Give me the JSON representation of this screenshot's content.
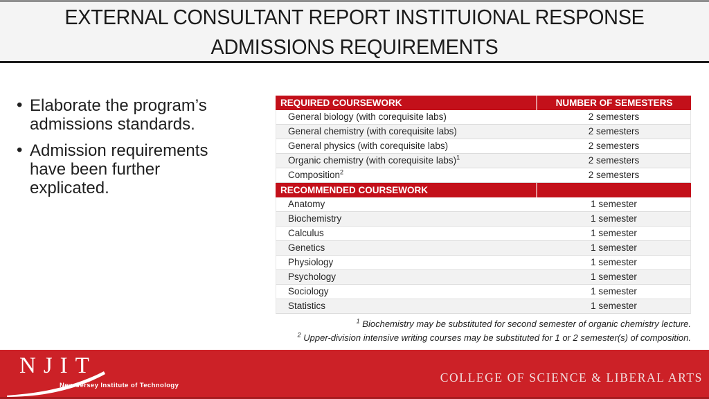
{
  "title": {
    "line1": "EXTERNAL CONSULTANT REPORT INSTITUIONAL RESPONSE",
    "line2": "ADMISSIONS REQUIREMENTS"
  },
  "bullets": [
    "Elaborate the program’s admissions standards.",
    "Admission requirements have been further explicated."
  ],
  "table": {
    "required_header": "REQUIRED COURSEWORK",
    "semesters_header": "NUMBER OF SEMESTERS",
    "recommended_header": "RECOMMENDED COURSEWORK",
    "required_rows": [
      {
        "course": "General biology (with corequisite labs)",
        "sup": "",
        "semesters": "2 semesters"
      },
      {
        "course": "General chemistry (with corequisite labs)",
        "sup": "",
        "semesters": "2 semesters"
      },
      {
        "course": "General physics (with corequisite labs)",
        "sup": "",
        "semesters": "2 semesters"
      },
      {
        "course": "Organic chemistry (with corequisite labs)",
        "sup": "1",
        "semesters": "2 semesters"
      },
      {
        "course": "Composition",
        "sup": "2",
        "semesters": "2 semesters"
      }
    ],
    "recommended_rows": [
      {
        "course": "Anatomy",
        "sup": "",
        "semesters": "1 semester"
      },
      {
        "course": "Biochemistry",
        "sup": "",
        "semesters": "1 semester"
      },
      {
        "course": "Calculus",
        "sup": "",
        "semesters": "1 semester"
      },
      {
        "course": "Genetics",
        "sup": "",
        "semesters": "1 semester"
      },
      {
        "course": "Physiology",
        "sup": "",
        "semesters": "1 semester"
      },
      {
        "course": "Psychology",
        "sup": "",
        "semesters": "1 semester"
      },
      {
        "course": "Sociology",
        "sup": "",
        "semesters": "1 semester"
      },
      {
        "course": "Statistics",
        "sup": "",
        "semesters": "1 semester"
      }
    ]
  },
  "footnotes": [
    {
      "sup": "1",
      "text": "Biochemistry may be substituted for second semester of organic chemistry lecture."
    },
    {
      "sup": "2",
      "text": "Upper-division intensive writing courses may be substituted for 1 or 2 semester(s) of composition."
    }
  ],
  "footer": {
    "logo_letters": "NJIT",
    "logo_subtitle": "New Jersey Institute of Technology",
    "college": "COLLEGE OF SCIENCE & LIBERAL ARTS"
  },
  "colors": {
    "table_red": "#c3101a",
    "footer_red": "#cc2127",
    "title_text": "#1b1b1b"
  }
}
